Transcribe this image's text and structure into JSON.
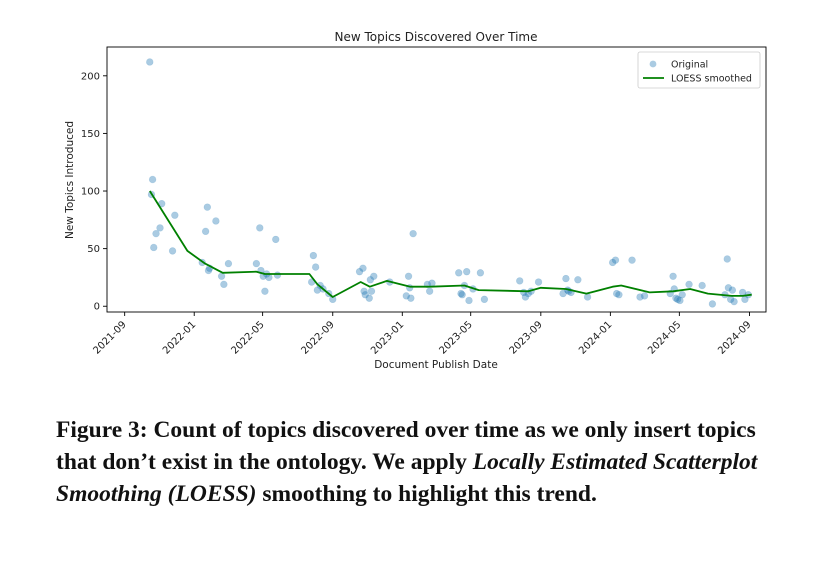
{
  "chart_data": {
    "type": "scatter",
    "title": "New Topics Discovered Over Time",
    "xlabel": "Document Publish Date",
    "ylabel": "New Topics Introduced",
    "xlim": [
      "2021-08-01",
      "2024-09-30"
    ],
    "ylim": [
      -5,
      225
    ],
    "yticks": [
      0,
      50,
      100,
      150,
      200
    ],
    "xticks": [
      {
        "date": "2021-09-01",
        "label": "2021-09"
      },
      {
        "date": "2022-01-01",
        "label": "2022-01"
      },
      {
        "date": "2022-05-01",
        "label": "2022-05"
      },
      {
        "date": "2022-09-01",
        "label": "2022-09"
      },
      {
        "date": "2023-01-01",
        "label": "2023-01"
      },
      {
        "date": "2023-05-01",
        "label": "2023-05"
      },
      {
        "date": "2023-09-01",
        "label": "2023-09"
      },
      {
        "date": "2024-01-01",
        "label": "2024-01"
      },
      {
        "date": "2024-05-01",
        "label": "2024-05"
      },
      {
        "date": "2024-09-01",
        "label": "2024-09"
      }
    ],
    "legend_position": "top-right",
    "series": [
      {
        "name": "Original",
        "kind": "scatter",
        "color": "#1f77b4",
        "points": [
          {
            "x": "2021-10-15",
            "y": 212
          },
          {
            "x": "2021-10-18",
            "y": 97
          },
          {
            "x": "2021-10-20",
            "y": 110
          },
          {
            "x": "2021-10-22",
            "y": 51
          },
          {
            "x": "2021-10-26",
            "y": 63
          },
          {
            "x": "2021-11-02",
            "y": 68
          },
          {
            "x": "2021-11-05",
            "y": 89
          },
          {
            "x": "2021-11-24",
            "y": 48
          },
          {
            "x": "2021-11-28",
            "y": 79
          },
          {
            "x": "2022-01-15",
            "y": 38
          },
          {
            "x": "2022-01-21",
            "y": 65
          },
          {
            "x": "2022-01-24",
            "y": 86
          },
          {
            "x": "2022-01-26",
            "y": 31
          },
          {
            "x": "2022-01-28",
            "y": 33
          },
          {
            "x": "2022-02-08",
            "y": 74
          },
          {
            "x": "2022-02-18",
            "y": 26
          },
          {
            "x": "2022-02-22",
            "y": 19
          },
          {
            "x": "2022-03-02",
            "y": 37
          },
          {
            "x": "2022-04-20",
            "y": 37
          },
          {
            "x": "2022-04-26",
            "y": 68
          },
          {
            "x": "2022-04-28",
            "y": 31
          },
          {
            "x": "2022-05-02",
            "y": 26
          },
          {
            "x": "2022-05-05",
            "y": 13
          },
          {
            "x": "2022-05-08",
            "y": 28
          },
          {
            "x": "2022-05-12",
            "y": 25
          },
          {
            "x": "2022-05-24",
            "y": 58
          },
          {
            "x": "2022-05-27",
            "y": 27
          },
          {
            "x": "2022-07-26",
            "y": 21
          },
          {
            "x": "2022-07-29",
            "y": 44
          },
          {
            "x": "2022-08-02",
            "y": 34
          },
          {
            "x": "2022-08-05",
            "y": 14
          },
          {
            "x": "2022-08-10",
            "y": 18
          },
          {
            "x": "2022-08-15",
            "y": 15
          },
          {
            "x": "2022-08-25",
            "y": 11
          },
          {
            "x": "2022-09-01",
            "y": 6
          },
          {
            "x": "2022-10-18",
            "y": 30
          },
          {
            "x": "2022-10-24",
            "y": 33
          },
          {
            "x": "2022-10-26",
            "y": 13
          },
          {
            "x": "2022-10-28",
            "y": 10
          },
          {
            "x": "2022-11-04",
            "y": 7
          },
          {
            "x": "2022-11-06",
            "y": 23
          },
          {
            "x": "2022-11-08",
            "y": 13
          },
          {
            "x": "2022-11-12",
            "y": 26
          },
          {
            "x": "2022-12-10",
            "y": 21
          },
          {
            "x": "2023-01-08",
            "y": 9
          },
          {
            "x": "2023-01-12",
            "y": 26
          },
          {
            "x": "2023-01-14",
            "y": 16
          },
          {
            "x": "2023-01-16",
            "y": 7
          },
          {
            "x": "2023-01-20",
            "y": 63
          },
          {
            "x": "2023-02-14",
            "y": 19
          },
          {
            "x": "2023-02-18",
            "y": 13
          },
          {
            "x": "2023-02-22",
            "y": 20
          },
          {
            "x": "2023-04-10",
            "y": 29
          },
          {
            "x": "2023-04-14",
            "y": 11
          },
          {
            "x": "2023-04-16",
            "y": 10
          },
          {
            "x": "2023-04-20",
            "y": 18
          },
          {
            "x": "2023-04-24",
            "y": 30
          },
          {
            "x": "2023-04-28",
            "y": 5
          },
          {
            "x": "2023-05-05",
            "y": 15
          },
          {
            "x": "2023-05-18",
            "y": 29
          },
          {
            "x": "2023-05-25",
            "y": 6
          },
          {
            "x": "2023-07-26",
            "y": 22
          },
          {
            "x": "2023-08-02",
            "y": 12
          },
          {
            "x": "2023-08-05",
            "y": 8
          },
          {
            "x": "2023-08-10",
            "y": 11
          },
          {
            "x": "2023-08-15",
            "y": 13
          },
          {
            "x": "2023-08-28",
            "y": 21
          },
          {
            "x": "2023-10-10",
            "y": 11
          },
          {
            "x": "2023-10-15",
            "y": 24
          },
          {
            "x": "2023-10-18",
            "y": 14
          },
          {
            "x": "2023-10-20",
            "y": 13
          },
          {
            "x": "2023-10-24",
            "y": 12
          },
          {
            "x": "2023-11-05",
            "y": 23
          },
          {
            "x": "2023-11-22",
            "y": 8
          },
          {
            "x": "2024-01-05",
            "y": 38
          },
          {
            "x": "2024-01-10",
            "y": 40
          },
          {
            "x": "2024-01-12",
            "y": 11
          },
          {
            "x": "2024-01-16",
            "y": 10
          },
          {
            "x": "2024-02-08",
            "y": 40
          },
          {
            "x": "2024-02-22",
            "y": 8
          },
          {
            "x": "2024-03-01",
            "y": 9
          },
          {
            "x": "2024-04-15",
            "y": 11
          },
          {
            "x": "2024-04-20",
            "y": 26
          },
          {
            "x": "2024-04-22",
            "y": 15
          },
          {
            "x": "2024-04-25",
            "y": 7
          },
          {
            "x": "2024-04-28",
            "y": 6
          },
          {
            "x": "2024-05-02",
            "y": 5
          },
          {
            "x": "2024-05-06",
            "y": 10
          },
          {
            "x": "2024-05-18",
            "y": 19
          },
          {
            "x": "2024-06-10",
            "y": 18
          },
          {
            "x": "2024-06-28",
            "y": 2
          },
          {
            "x": "2024-07-20",
            "y": 10
          },
          {
            "x": "2024-07-24",
            "y": 41
          },
          {
            "x": "2024-07-26",
            "y": 16
          },
          {
            "x": "2024-07-30",
            "y": 6
          },
          {
            "x": "2024-08-02",
            "y": 14
          },
          {
            "x": "2024-08-05",
            "y": 4
          },
          {
            "x": "2024-08-20",
            "y": 12
          },
          {
            "x": "2024-08-24",
            "y": 6
          },
          {
            "x": "2024-08-30",
            "y": 10
          }
        ]
      },
      {
        "name": "LOESS smoothed",
        "kind": "line",
        "color": "#008000",
        "points": [
          {
            "x": "2021-10-15",
            "y": 100
          },
          {
            "x": "2021-12-20",
            "y": 48
          },
          {
            "x": "2022-01-20",
            "y": 37
          },
          {
            "x": "2022-02-20",
            "y": 29
          },
          {
            "x": "2022-04-20",
            "y": 30
          },
          {
            "x": "2022-05-05",
            "y": 28
          },
          {
            "x": "2022-05-20",
            "y": 28
          },
          {
            "x": "2022-07-22",
            "y": 28
          },
          {
            "x": "2022-08-05",
            "y": 19
          },
          {
            "x": "2022-09-01",
            "y": 8
          },
          {
            "x": "2022-10-20",
            "y": 21
          },
          {
            "x": "2022-11-05",
            "y": 17
          },
          {
            "x": "2022-12-05",
            "y": 22
          },
          {
            "x": "2023-01-15",
            "y": 17
          },
          {
            "x": "2023-02-20",
            "y": 17
          },
          {
            "x": "2023-04-20",
            "y": 18
          },
          {
            "x": "2023-05-15",
            "y": 14
          },
          {
            "x": "2023-08-10",
            "y": 13
          },
          {
            "x": "2023-09-01",
            "y": 16
          },
          {
            "x": "2023-10-15",
            "y": 15
          },
          {
            "x": "2023-11-20",
            "y": 11
          },
          {
            "x": "2024-01-05",
            "y": 17
          },
          {
            "x": "2024-01-20",
            "y": 18
          },
          {
            "x": "2024-03-10",
            "y": 12
          },
          {
            "x": "2024-04-20",
            "y": 13
          },
          {
            "x": "2024-05-20",
            "y": 15
          },
          {
            "x": "2024-06-20",
            "y": 11
          },
          {
            "x": "2024-08-01",
            "y": 9
          },
          {
            "x": "2024-08-20",
            "y": 9
          },
          {
            "x": "2024-09-05",
            "y": 10
          }
        ]
      }
    ]
  },
  "caption": {
    "part1": "Figure 3: Count of topics discovered over time as we only insert topics that don’t exist in the ontology. We apply ",
    "italic": "Locally Estimated Scatterplot Smoothing (LOESS)",
    "part2": " smoothing to highlight this trend."
  }
}
